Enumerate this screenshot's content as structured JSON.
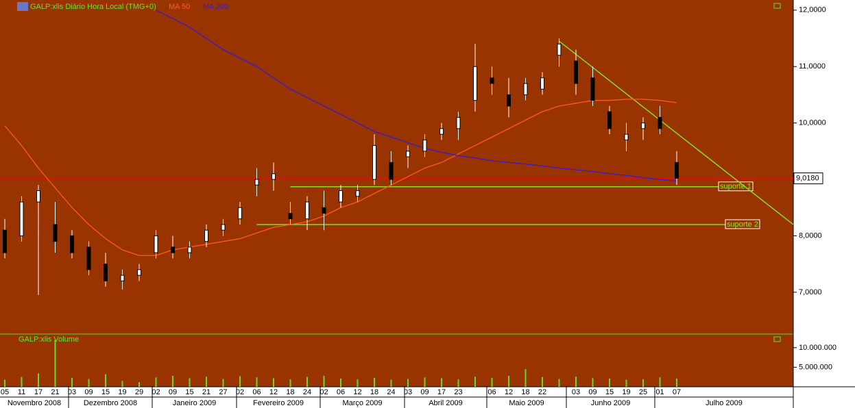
{
  "chart_data": {
    "type": "candlestick",
    "title": "GALP:xlis Diário Hora Local (TMG+0)",
    "categories": [
      "05",
      "11",
      "17",
      "21",
      "03",
      "09",
      "15",
      "19",
      "29",
      "02",
      "09",
      "15",
      "21",
      "27",
      "02",
      "06",
      "12",
      "18",
      "24",
      "02",
      "06",
      "12",
      "18",
      "24",
      "03",
      "09",
      "17",
      "23",
      null,
      "06",
      "12",
      "18",
      "22",
      null,
      "03",
      "09",
      "15",
      "19",
      "25",
      "01",
      "07"
    ],
    "months": [
      "Novembro 2008",
      "Dezembro 2008",
      "Janeiro 2009",
      "Fevereiro 2009",
      "Março 2009",
      "Abril 2009",
      "Maio 2009",
      "Junho 2009",
      "Julho 2009"
    ],
    "open": [
      8.1,
      8.0,
      8.6,
      8.2,
      8.0,
      7.8,
      7.5,
      7.2,
      7.3,
      7.7,
      7.8,
      7.7,
      7.9,
      8.1,
      8.3,
      8.9,
      9.0,
      8.4,
      8.3,
      8.5,
      8.6,
      8.7,
      9.0,
      9.3,
      9.4,
      9.5,
      9.8,
      9.9,
      10.4,
      10.8,
      10.5,
      10.5,
      10.6,
      11.2,
      11.1,
      10.8,
      10.2,
      9.7,
      9.9,
      10.1,
      9.3
    ],
    "high": [
      8.3,
      8.7,
      8.9,
      8.6,
      8.1,
      7.9,
      7.7,
      7.4,
      7.5,
      8.1,
      8.0,
      7.9,
      8.2,
      8.3,
      8.6,
      9.2,
      9.3,
      8.6,
      8.7,
      8.8,
      8.9,
      8.9,
      9.8,
      9.5,
      9.6,
      9.8,
      10.0,
      10.2,
      11.4,
      11.0,
      10.8,
      10.8,
      10.9,
      11.5,
      11.3,
      11.0,
      10.3,
      10.0,
      10.1,
      10.3,
      9.5
    ],
    "low": [
      7.6,
      7.9,
      6.95,
      7.7,
      7.6,
      7.3,
      7.1,
      7.05,
      7.2,
      7.6,
      7.6,
      7.6,
      7.8,
      8.0,
      8.2,
      8.7,
      8.8,
      8.2,
      8.1,
      8.1,
      8.5,
      8.6,
      8.9,
      8.9,
      9.2,
      9.4,
      9.7,
      9.7,
      10.2,
      10.5,
      10.1,
      10.4,
      10.5,
      11.0,
      10.5,
      10.3,
      9.8,
      9.5,
      9.7,
      9.8,
      8.9
    ],
    "close": [
      7.7,
      8.6,
      8.8,
      7.9,
      7.7,
      7.4,
      7.2,
      7.3,
      7.4,
      8.0,
      7.7,
      7.8,
      8.1,
      8.2,
      8.5,
      9.0,
      9.1,
      8.3,
      8.6,
      8.4,
      8.8,
      8.8,
      9.6,
      9.0,
      9.5,
      9.7,
      9.9,
      10.1,
      11.0,
      10.7,
      10.3,
      10.7,
      10.8,
      11.4,
      10.7,
      10.4,
      9.9,
      9.8,
      10.0,
      9.9,
      9.02
    ],
    "series": [
      {
        "name": "MA 50",
        "color": "#ff5a1e",
        "values": [
          9.95,
          9.6,
          9.2,
          8.85,
          8.5,
          8.2,
          7.95,
          7.75,
          7.65,
          7.65,
          7.75,
          7.8,
          7.85,
          7.9,
          7.95,
          8.05,
          8.15,
          8.2,
          8.25,
          8.35,
          8.5,
          8.6,
          8.75,
          8.9,
          9.05,
          9.2,
          9.3,
          9.45,
          9.6,
          9.75,
          9.9,
          10.05,
          10.2,
          10.3,
          10.35,
          10.4,
          10.4,
          10.42,
          10.42,
          10.4,
          10.36
        ]
      },
      {
        "name": "MA 200",
        "color": "#3a1ad0",
        "values": [
          null,
          null,
          null,
          null,
          null,
          null,
          null,
          null,
          null,
          12.0,
          11.85,
          11.7,
          11.5,
          11.3,
          11.15,
          11.0,
          10.8,
          10.6,
          10.45,
          10.3,
          10.15,
          10.0,
          9.85,
          9.75,
          9.65,
          9.55,
          9.48,
          9.42,
          9.38,
          9.33,
          9.3,
          9.27,
          9.24,
          9.2,
          9.17,
          9.14,
          9.1,
          9.07,
          9.03,
          9.0,
          8.97
        ]
      }
    ],
    "ylim": [
      6.27,
      12.18
    ],
    "yticks": [
      {
        "value": 7,
        "label": "7,0000"
      },
      {
        "value": 8,
        "label": "8,0000"
      },
      {
        "value": 9,
        "label": "9,0000"
      },
      {
        "value": 10,
        "label": "10,0000"
      },
      {
        "value": 11,
        "label": "11,0000"
      },
      {
        "value": 12,
        "label": "12,0000"
      }
    ],
    "last_price": {
      "value": 9.018,
      "label": "9,0180"
    },
    "annotations": [
      {
        "label": "suporte 1",
        "value": 8.87
      },
      {
        "label": "suporte 2",
        "value": 8.2
      }
    ],
    "trendline": [
      11.45,
      8.2
    ],
    "volume_title": "GALP:xlis Volume",
    "volume": [
      1800000.0,
      2500000.0,
      3400000.0,
      12000000.0,
      2300000.0,
      2000000.0,
      3200000.0,
      1500000.0,
      1200000.0,
      2400000.0,
      2800000.0,
      2200000.0,
      2600000.0,
      2000000.0,
      2700000.0,
      2400000.0,
      2200000.0,
      1900000.0,
      2500000.0,
      2800000.0,
      2100000.0,
      1900000.0,
      2300000.0,
      1800000.0,
      2000000.0,
      2400000.0,
      2200000.0,
      1900000.0,
      2600000.0,
      2300000.0,
      2800000.0,
      4500000.0,
      2500000.0,
      2000000.0,
      2600000.0,
      2200000.0,
      2100000.0,
      1800000.0,
      1900000.0,
      2400000.0,
      2100000.0
    ],
    "volume_color": "#66dd22",
    "volume_ylim": [
      0,
      13300000
    ],
    "volume_yticks": [
      {
        "value": 5000000,
        "label": "5.000.000"
      },
      {
        "value": 10000000,
        "label": "10.000.000"
      }
    ]
  }
}
